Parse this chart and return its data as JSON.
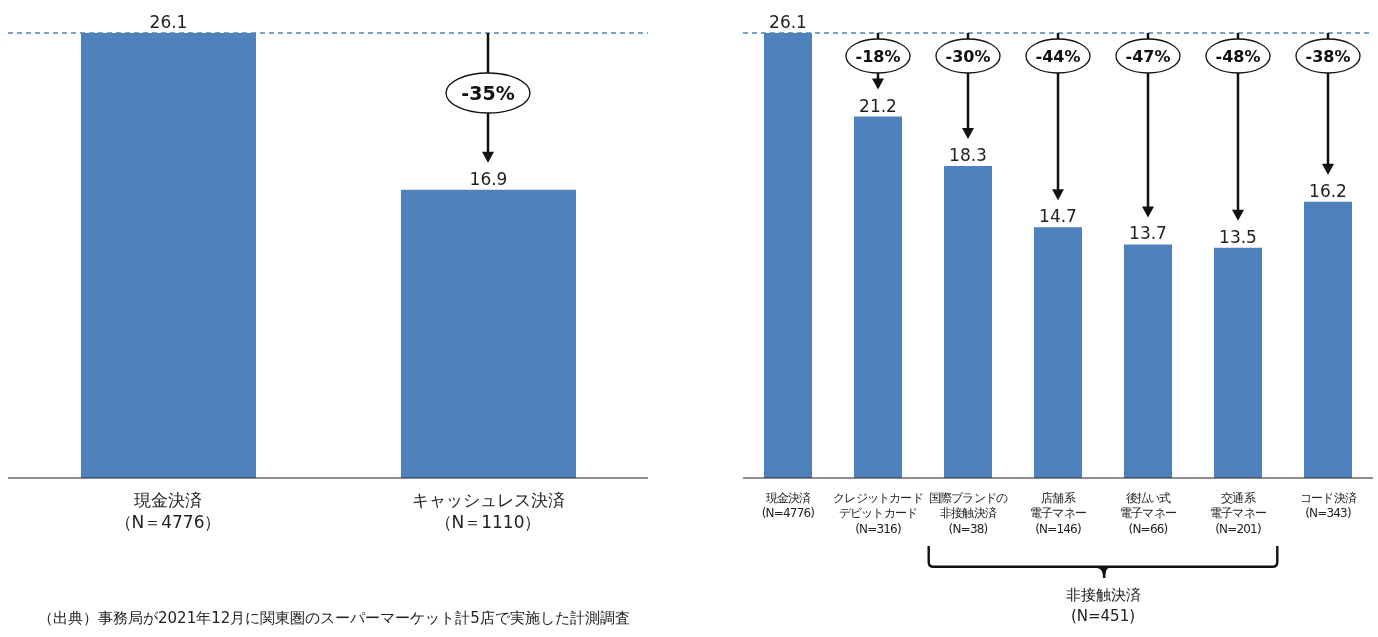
{
  "chart_data": [
    {
      "type": "bar",
      "categories": [
        "現金決済（N＝4776）",
        "キャッシュレス決済（N＝1110）"
      ],
      "values": [
        26.1,
        16.9
      ],
      "color": "#4f81bd",
      "data_labels": true,
      "ref_lines": [
        {
          "axis": "y",
          "value": 26.1,
          "color": "#4f81bd",
          "line_style": "dashed"
        }
      ],
      "annotations": [
        "-35%",
        "（出典）事務局が2021年12月に関東圏のスーパーマーケット計5店で実施した計測調査"
      ]
    },
    {
      "type": "bar",
      "categories": [
        "現金決済(N=4776)",
        "クレジットカードデビットカード(N=316)",
        "国際ブランドの非接触決済(N=38)",
        "店舗系電子マネー(N=146)",
        "後払い式電子マネー(N=66)",
        "交通系電子マネー(N=201)",
        "コード決済(N=343)"
      ],
      "values": [
        26.1,
        21.2,
        18.3,
        14.7,
        13.7,
        13.5,
        16.2
      ],
      "color": "#4f81bd",
      "data_labels": true,
      "ref_lines": [
        {
          "axis": "y",
          "value": 26.1,
          "color": "#4f81bd",
          "line_style": "dashed"
        }
      ],
      "annotations": [
        "-18%",
        "-30%",
        "-44%",
        "-47%",
        "-48%",
        "-38%",
        "非接触決済(N=451)"
      ]
    }
  ]
}
